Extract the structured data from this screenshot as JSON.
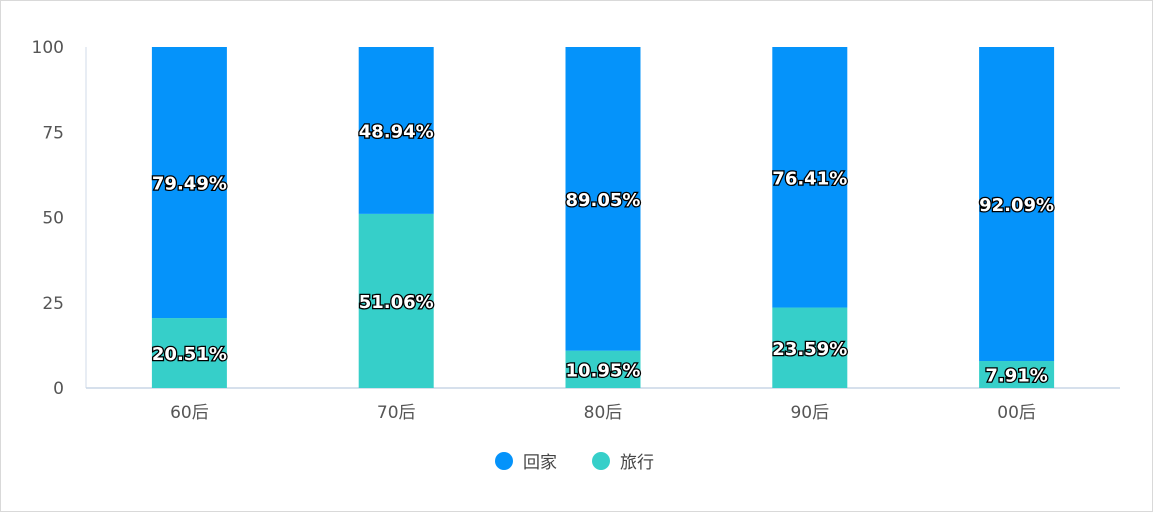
{
  "chart_data": {
    "type": "bar",
    "stacked": true,
    "categories": [
      "60后",
      "70后",
      "80后",
      "90后",
      "00后"
    ],
    "series": [
      {
        "name": "旅行",
        "color": "#36cfc9",
        "values": [
          20.51,
          51.06,
          10.95,
          23.59,
          7.91
        ],
        "labels": [
          "20.51%",
          "51.06%",
          "10.95%",
          "23.59%",
          "7.91%"
        ]
      },
      {
        "name": "回家",
        "color": "#0593fa",
        "values": [
          79.49,
          48.94,
          89.05,
          76.41,
          92.09
        ],
        "labels": [
          "79.49%",
          "48.94%",
          "89.05%",
          "76.41%",
          "92.09%"
        ]
      }
    ],
    "yticks": [
      "0",
      "25",
      "50",
      "75",
      "100"
    ],
    "ylim": [
      0,
      100
    ],
    "grid": false,
    "legend": {
      "placement": "bottom-center",
      "items": [
        "回家",
        "旅行"
      ]
    }
  }
}
